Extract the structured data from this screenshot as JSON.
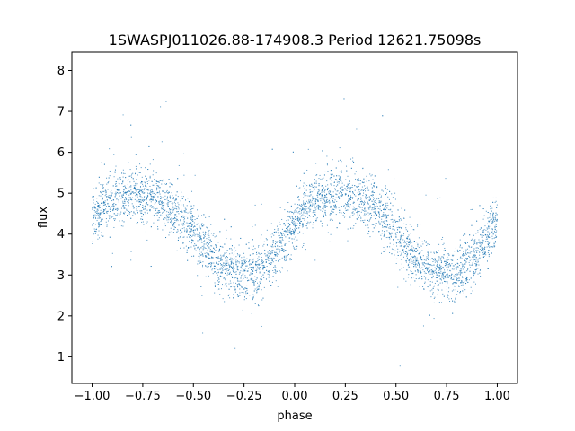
{
  "chart_data": {
    "type": "scatter",
    "title": "1SWASPJ011026.88-174908.3 Period 12621.75098s",
    "xlabel": "phase",
    "ylabel": "flux",
    "xlim": [
      -1.1,
      1.1
    ],
    "ylim": [
      0.35,
      8.45
    ],
    "xticks": [
      -1.0,
      -0.75,
      -0.5,
      -0.25,
      0.0,
      0.25,
      0.5,
      0.75,
      1.0
    ],
    "xtick_labels": [
      "−1.00",
      "−0.75",
      "−0.50",
      "−0.25",
      "0.00",
      "0.25",
      "0.50",
      "0.75",
      "1.00"
    ],
    "yticks": [
      1,
      2,
      3,
      4,
      5,
      6,
      7,
      8
    ],
    "ytick_labels": [
      "1",
      "2",
      "3",
      "4",
      "5",
      "6",
      "7",
      "8"
    ],
    "grid": false,
    "marker_color": "#1f77b4",
    "series": [
      {
        "x": [
          -1.0,
          -0.95,
          -0.9,
          -0.85,
          -0.8,
          -0.75,
          -0.7,
          -0.65,
          -0.6,
          -0.55,
          -0.5,
          -0.45,
          -0.4,
          -0.35,
          -0.3,
          -0.25,
          -0.2,
          -0.15,
          -0.1,
          -0.05,
          0.0,
          0.05,
          0.1,
          0.15,
          0.2,
          0.25,
          0.3,
          0.35,
          0.4,
          0.45,
          0.5,
          0.55,
          0.6,
          0.65,
          0.7,
          0.75,
          0.8,
          0.85,
          0.9,
          0.95,
          1.0
        ],
        "y": [
          4.4,
          4.7,
          4.8,
          4.9,
          4.95,
          4.95,
          4.9,
          4.8,
          4.6,
          4.4,
          4.1,
          3.7,
          3.4,
          3.2,
          3.1,
          3.05,
          3.1,
          3.2,
          3.5,
          3.9,
          4.3,
          4.6,
          4.8,
          4.9,
          4.95,
          4.95,
          4.9,
          4.8,
          4.6,
          4.4,
          4.1,
          3.7,
          3.4,
          3.2,
          3.1,
          3.05,
          3.1,
          3.2,
          3.5,
          3.9,
          4.3
        ]
      }
    ]
  }
}
